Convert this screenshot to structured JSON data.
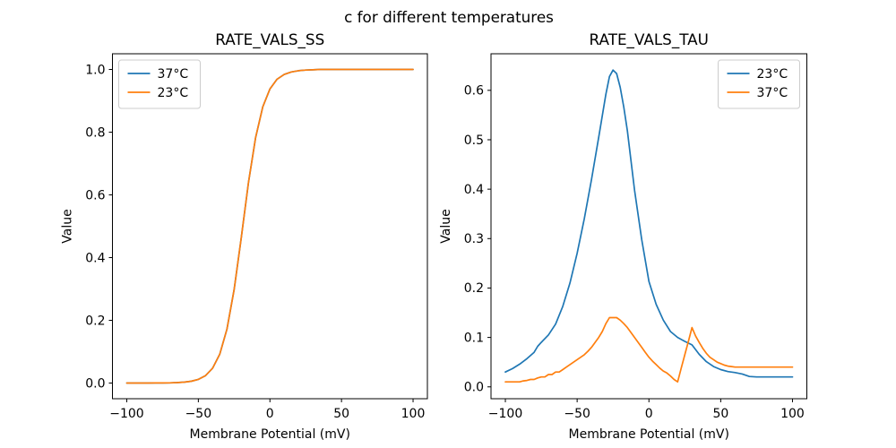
{
  "suptitle": "c for different temperatures",
  "colors": {
    "blue": "#1f77b4",
    "orange": "#ff7f0e",
    "legend_border": "#cccccc",
    "axis": "#000000"
  },
  "chart_data": [
    {
      "type": "line",
      "title": "RATE_VALS_SS",
      "xlabel": "Membrane Potential (mV)",
      "ylabel": "Value",
      "xlim": [
        -110,
        110
      ],
      "ylim": [
        -0.05,
        1.05
      ],
      "grid": false,
      "legend_loc": "upper left",
      "xticks": {
        "values": [
          -100,
          -50,
          0,
          50,
          100
        ],
        "labels": [
          "−100",
          "−50",
          "0",
          "50",
          "100"
        ]
      },
      "yticks": {
        "values": [
          0.0,
          0.2,
          0.4,
          0.6,
          0.8,
          1.0
        ],
        "labels": [
          "0.0",
          "0.2",
          "0.4",
          "0.6",
          "0.8",
          "1.0"
        ]
      },
      "series": [
        {
          "name": "37°C",
          "color": "#1f77b4",
          "x": [
            -100,
            -95,
            -90,
            -85,
            -80,
            -75,
            -70,
            -65,
            -60,
            -55,
            -50,
            -45,
            -40,
            -35,
            -30,
            -25,
            -20,
            -15,
            -10,
            -5,
            0,
            5,
            10,
            15,
            20,
            25,
            30,
            35,
            40,
            45,
            50,
            55,
            60,
            65,
            70,
            75,
            80,
            85,
            90,
            95,
            100
          ],
          "y": [
            0.0,
            0.0,
            0.0,
            0.0001,
            0.0002,
            0.0003,
            0.0007,
            0.0014,
            0.0029,
            0.0058,
            0.0118,
            0.0238,
            0.0474,
            0.0923,
            0.172,
            0.298,
            0.464,
            0.639,
            0.783,
            0.881,
            0.938,
            0.969,
            0.984,
            0.992,
            0.996,
            0.998,
            0.999,
            1.0,
            1.0,
            1.0,
            1.0,
            1.0,
            1.0,
            1.0,
            1.0,
            1.0,
            1.0,
            1.0,
            1.0,
            1.0,
            1.0
          ]
        },
        {
          "name": "23°C",
          "color": "#ff7f0e",
          "x": [
            -100,
            -95,
            -90,
            -85,
            -80,
            -75,
            -70,
            -65,
            -60,
            -55,
            -50,
            -45,
            -40,
            -35,
            -30,
            -25,
            -20,
            -15,
            -10,
            -5,
            0,
            5,
            10,
            15,
            20,
            25,
            30,
            35,
            40,
            45,
            50,
            55,
            60,
            65,
            70,
            75,
            80,
            85,
            90,
            95,
            100
          ],
          "y": [
            0.0,
            0.0,
            0.0,
            0.0001,
            0.0002,
            0.0003,
            0.0007,
            0.0014,
            0.0029,
            0.0058,
            0.0118,
            0.0238,
            0.0474,
            0.0923,
            0.172,
            0.298,
            0.464,
            0.639,
            0.783,
            0.881,
            0.938,
            0.969,
            0.984,
            0.992,
            0.996,
            0.998,
            0.999,
            1.0,
            1.0,
            1.0,
            1.0,
            1.0,
            1.0,
            1.0,
            1.0,
            1.0,
            1.0,
            1.0,
            1.0,
            1.0,
            1.0
          ]
        }
      ]
    },
    {
      "type": "line",
      "title": "RATE_VALS_TAU",
      "xlabel": "Membrane Potential (mV)",
      "ylabel": "Value",
      "xlim": [
        -110,
        110
      ],
      "ylim": [
        -0.024,
        0.674
      ],
      "grid": false,
      "legend_loc": "upper right",
      "xticks": {
        "values": [
          -100,
          -50,
          0,
          50,
          100
        ],
        "labels": [
          "−100",
          "−50",
          "0",
          "50",
          "100"
        ]
      },
      "yticks": {
        "values": [
          0.0,
          0.1,
          0.2,
          0.3,
          0.4,
          0.5,
          0.6
        ],
        "labels": [
          "0.0",
          "0.1",
          "0.2",
          "0.3",
          "0.4",
          "0.5",
          "0.6"
        ]
      },
      "series": [
        {
          "name": "23°C",
          "color": "#1f77b4",
          "x": [
            -100,
            -95,
            -90,
            -85,
            -80,
            -77.5,
            -75,
            -70,
            -65,
            -60,
            -55,
            -50,
            -45,
            -40,
            -35,
            -30,
            -27.5,
            -25,
            -22.5,
            -20,
            -17.5,
            -15,
            -10,
            -5,
            0,
            5,
            10,
            15,
            20,
            25,
            30,
            35,
            40,
            45,
            50,
            55,
            60,
            65,
            70,
            75,
            80,
            85,
            90,
            95,
            100
          ],
          "y": [
            0.03,
            0.037,
            0.046,
            0.057,
            0.07,
            0.082,
            0.09,
            0.105,
            0.127,
            0.163,
            0.21,
            0.27,
            0.34,
            0.42,
            0.505,
            0.592,
            0.628,
            0.641,
            0.634,
            0.606,
            0.566,
            0.518,
            0.398,
            0.298,
            0.213,
            0.167,
            0.135,
            0.112,
            0.1,
            0.092,
            0.085,
            0.066,
            0.051,
            0.041,
            0.035,
            0.031,
            0.029,
            0.026,
            0.021,
            0.02,
            0.02,
            0.02,
            0.02,
            0.02,
            0.02
          ]
        },
        {
          "name": "37°C",
          "color": "#ff7f0e",
          "x": [
            -100,
            -97.5,
            -95,
            -92.5,
            -90,
            -87.5,
            -85,
            -82.5,
            -80,
            -77.5,
            -75,
            -72.5,
            -70,
            -67.5,
            -65,
            -62.5,
            -60,
            -57.5,
            -55,
            -52.5,
            -50,
            -47.5,
            -45,
            -42.5,
            -40,
            -37.5,
            -35,
            -32.5,
            -30,
            -27.5,
            -25,
            -22.5,
            -20,
            -17.5,
            -15,
            -12.5,
            -10,
            -7.5,
            -5,
            -2.5,
            0,
            2.5,
            5,
            7.5,
            10,
            12.5,
            15,
            17.5,
            20,
            22.5,
            25,
            27.5,
            30,
            32.5,
            35,
            37.5,
            40,
            42.5,
            45,
            47.5,
            50,
            52.5,
            55,
            57.5,
            60,
            65,
            70,
            75,
            80,
            85,
            90,
            95,
            100
          ],
          "y": [
            0.01,
            0.01,
            0.01,
            0.01,
            0.01,
            0.012,
            0.013,
            0.015,
            0.015,
            0.018,
            0.02,
            0.02,
            0.025,
            0.025,
            0.03,
            0.03,
            0.035,
            0.04,
            0.045,
            0.05,
            0.055,
            0.06,
            0.065,
            0.072,
            0.08,
            0.09,
            0.1,
            0.112,
            0.128,
            0.14,
            0.14,
            0.14,
            0.135,
            0.128,
            0.12,
            0.11,
            0.1,
            0.09,
            0.08,
            0.07,
            0.06,
            0.052,
            0.045,
            0.038,
            0.032,
            0.028,
            0.022,
            0.015,
            0.01,
            0.038,
            0.065,
            0.092,
            0.12,
            0.103,
            0.09,
            0.078,
            0.068,
            0.06,
            0.055,
            0.05,
            0.047,
            0.044,
            0.042,
            0.041,
            0.04,
            0.04,
            0.04,
            0.04,
            0.04,
            0.04,
            0.04,
            0.04,
            0.04
          ]
        }
      ]
    }
  ]
}
